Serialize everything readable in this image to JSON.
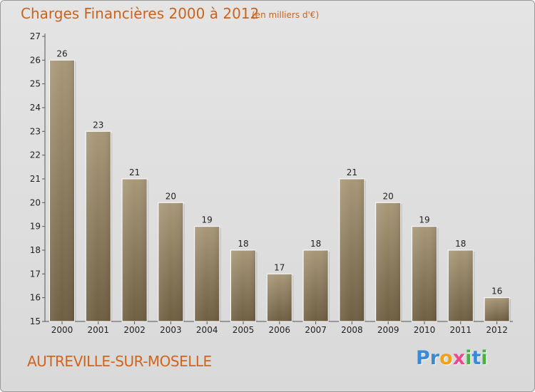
{
  "chart_data": {
    "type": "bar",
    "title": "Charges Financières 2000 à 2012",
    "subtitle": "(en milliers d'€)",
    "categories": [
      "2000",
      "2001",
      "2002",
      "2003",
      "2004",
      "2005",
      "2006",
      "2007",
      "2008",
      "2009",
      "2010",
      "2011",
      "2012"
    ],
    "values": [
      26,
      23,
      21,
      20,
      19,
      18,
      17,
      18,
      21,
      20,
      19,
      18,
      16
    ],
    "ylim": [
      15,
      27
    ],
    "yticks": [
      15,
      16,
      17,
      18,
      19,
      20,
      21,
      22,
      23,
      24,
      25,
      26,
      27
    ],
    "grid": false,
    "bar_color_top": "#a89878",
    "bar_color_bottom": "#6e5e42"
  },
  "place_name": "AUTREVILLE-SUR-MOSELLE",
  "brand": {
    "letters": [
      {
        "ch": "P",
        "color": "#3a8ad8"
      },
      {
        "ch": "r",
        "color": "#3a8ad8"
      },
      {
        "ch": "o",
        "color": "#f0a020"
      },
      {
        "ch": "x",
        "color": "#e84a8a"
      },
      {
        "ch": "i",
        "color": "#4ab04a"
      },
      {
        "ch": "t",
        "color": "#3a8ad8"
      },
      {
        "ch": "i",
        "color": "#4ab04a"
      }
    ]
  }
}
